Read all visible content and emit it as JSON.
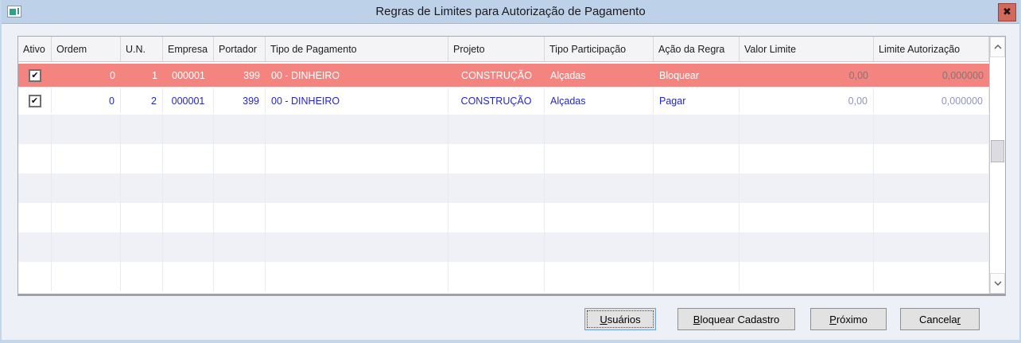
{
  "window": {
    "title": "Regras de Limites para Autorização de Pagamento",
    "close_glyph": "✖"
  },
  "colors": {
    "titlebar": "#bdd1e8",
    "close_button": "#d3695d",
    "selected_row": "#f48480",
    "row_text_blue": "#2525c6",
    "muted_value": "#9095bb",
    "body_background": "#edf0f7"
  },
  "grid": {
    "check_glyph": "✔",
    "empty_row_count": 6,
    "columns": [
      {
        "key": "ativo",
        "label": "Ativo"
      },
      {
        "key": "ordem",
        "label": "Ordem"
      },
      {
        "key": "un",
        "label": "U.N."
      },
      {
        "key": "empresa",
        "label": "Empresa"
      },
      {
        "key": "portador",
        "label": "Portador"
      },
      {
        "key": "tipo_pagamento",
        "label": "Tipo de Pagamento"
      },
      {
        "key": "projeto",
        "label": "Projeto"
      },
      {
        "key": "tipo_participacao",
        "label": "Tipo Participação"
      },
      {
        "key": "acao_regra",
        "label": "Ação da Regra"
      },
      {
        "key": "valor_limite",
        "label": "Valor Limite"
      },
      {
        "key": "limite_autorizacao",
        "label": "Limite Autorização"
      }
    ],
    "rows": [
      {
        "state": "selected",
        "ativo": true,
        "ordem": "0",
        "un": "1",
        "empresa": "000001",
        "portador": "399",
        "tipo_pagamento": "00 - DINHEIRO",
        "projeto": "CONSTRUÇÃO",
        "tipo_participacao": "Alçadas",
        "acao_regra": "Bloquear",
        "valor_limite": "0,00",
        "limite_autorizacao": "0,000000"
      },
      {
        "state": "normal",
        "ativo": true,
        "ordem": "0",
        "un": "2",
        "empresa": "000001",
        "portador": "399",
        "tipo_pagamento": "00 - DINHEIRO",
        "projeto": "CONSTRUÇÃO",
        "tipo_participacao": "Alçadas",
        "acao_regra": "Pagar",
        "valor_limite": "0,00",
        "limite_autorizacao": "0,000000"
      }
    ]
  },
  "buttons": {
    "usuarios": {
      "pre": "",
      "key": "U",
      "post": "suários"
    },
    "bloquear": {
      "pre": "",
      "key": "B",
      "post": "loquear Cadastro"
    },
    "proximo": {
      "pre": "",
      "key": "P",
      "post": "róximo"
    },
    "cancelar": {
      "pre": "Cancela",
      "key": "r",
      "post": ""
    }
  }
}
